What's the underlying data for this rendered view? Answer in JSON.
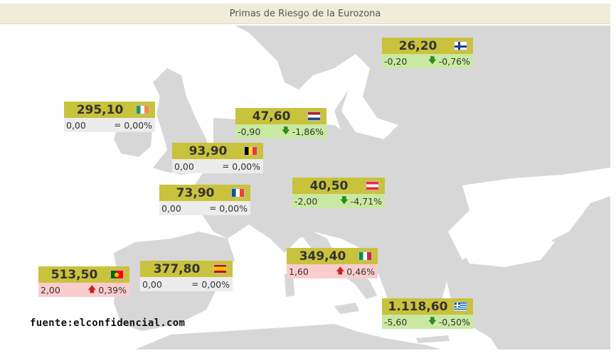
{
  "title": "Primas de Riesgo de la Eurozona",
  "source": "fuente:elconfidencial.com",
  "colors": {
    "header": "#c9c23c",
    "down": "#c9e9a2",
    "up": "#f9cdcd",
    "neutral": "#ececec",
    "land": "#d7d7d7"
  },
  "countries": [
    {
      "id": "finland",
      "flag": "finland-flag-icon",
      "value": "26,20",
      "change": "-0,20",
      "arrow": "🡇",
      "percent": "-0,76%",
      "trend": "down"
    },
    {
      "id": "ireland",
      "flag": "ireland-flag-icon",
      "value": "295,10",
      "change": "0,00",
      "arrow": "=",
      "percent": "0,00%",
      "trend": "neutral"
    },
    {
      "id": "netherlands",
      "flag": "netherlands-flag-icon",
      "value": "47,60",
      "change": "-0,90",
      "arrow": "🡇",
      "percent": "-1,86%",
      "trend": "down"
    },
    {
      "id": "belgium",
      "flag": "belgium-flag-icon",
      "value": "93,90",
      "change": "0,00",
      "arrow": "=",
      "percent": "0,00%",
      "trend": "neutral"
    },
    {
      "id": "france",
      "flag": "france-flag-icon",
      "value": "73,90",
      "change": "0,00",
      "arrow": "=",
      "percent": "0,00%",
      "trend": "neutral"
    },
    {
      "id": "austria",
      "flag": "austria-flag-icon",
      "value": "40,50",
      "change": "-2,00",
      "arrow": "🡇",
      "percent": "-4,71%",
      "trend": "down"
    },
    {
      "id": "italy",
      "flag": "italy-flag-icon",
      "value": "349,40",
      "change": "1,60",
      "arrow": "🡅",
      "percent": "0,46%",
      "trend": "up"
    },
    {
      "id": "portugal",
      "flag": "portugal-flag-icon",
      "value": "513,50",
      "change": "2,00",
      "arrow": "🡅",
      "percent": "0,39%",
      "trend": "up"
    },
    {
      "id": "spain",
      "flag": "spain-flag-icon",
      "value": "377,80",
      "change": "0,00",
      "arrow": "=",
      "percent": "0,00%",
      "trend": "neutral"
    },
    {
      "id": "greece",
      "flag": "greece-flag-icon",
      "value": "1.118,60",
      "change": "-5,60",
      "arrow": "🡇",
      "percent": "-0,50%",
      "trend": "down"
    }
  ]
}
